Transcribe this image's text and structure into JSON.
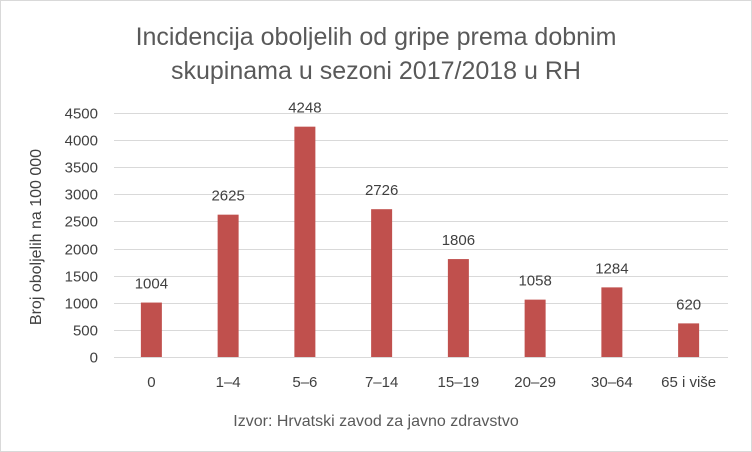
{
  "chart_data": {
    "type": "bar",
    "title_lines": [
      "Incidencija oboljelih od gripe prema dobnim",
      "skupinama u sezoni 2017/2018 u RH"
    ],
    "ylabel": "Broj oboljelih na 100 000",
    "xlabel": "",
    "source": "Izvor: Hrvatski zavod za javno zdravstvo",
    "categories": [
      "0",
      "1–4",
      "5–6",
      "7–14",
      "15–19",
      "20–29",
      "30–64",
      "65 i više"
    ],
    "values": [
      1004,
      2625,
      4248,
      2726,
      1806,
      1058,
      1284,
      620
    ],
    "data_labels": [
      "1004",
      "2625",
      "4248",
      "2726",
      "1806",
      "1058",
      "1284",
      "620"
    ],
    "yticks": [
      "0",
      "500",
      "1000",
      "1500",
      "2000",
      "2500",
      "3000",
      "3500",
      "4000",
      "4500"
    ],
    "ylim": [
      0,
      4500
    ],
    "grid": true,
    "bar_color": "#c0504d",
    "grid_color": "#d9d9d9",
    "text_color": "#404040"
  }
}
